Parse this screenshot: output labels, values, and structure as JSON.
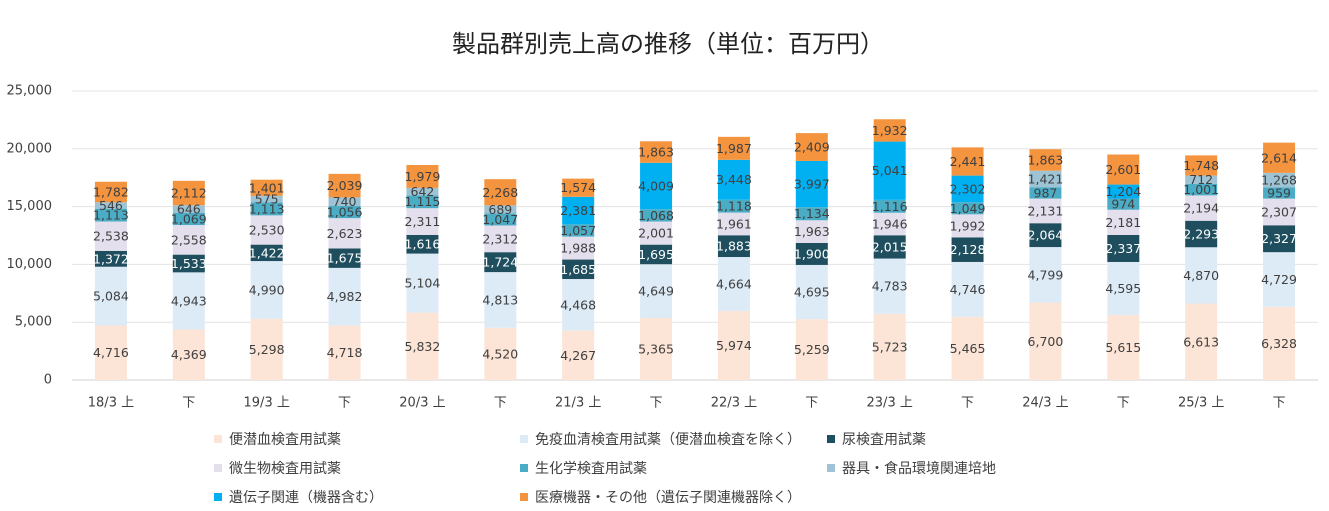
{
  "chart_data": {
    "type": "bar",
    "stacked": true,
    "title": "製品群別売上高の推移（単位：百万円）",
    "xlabel": "",
    "ylabel": "",
    "ylim": [
      0,
      25000
    ],
    "yticks": [
      0,
      5000,
      10000,
      15000,
      20000,
      25000
    ],
    "ytick_labels": [
      "0",
      "5,000",
      "10,000",
      "15,000",
      "20,000",
      "25,000"
    ],
    "grid": true,
    "legend_position": "bottom",
    "categories": [
      "18/3 上",
      "下",
      "19/3 上",
      "下",
      "20/3 上",
      "下",
      "21/3 上",
      "下",
      "22/3 上",
      "下",
      "23/3 上",
      "下",
      "24/3 上",
      "下",
      "25/3 上",
      "下"
    ],
    "series": [
      {
        "name": "便潜血検査用試薬",
        "color": "#FCE4D6",
        "label_color": "#404040",
        "values": [
          4716,
          4369,
          5298,
          4718,
          5832,
          4520,
          4267,
          5365,
          5974,
          5259,
          5723,
          5465,
          6700,
          5615,
          6613,
          6328
        ],
        "labels": [
          "4,716",
          "4,369",
          "5,298",
          "4,718",
          "5,832",
          "4,520",
          "4,267",
          "5,365",
          "5,974",
          "5,259",
          "5,723",
          "5,465",
          "6,700",
          "5,615",
          "6,613",
          "6,328"
        ]
      },
      {
        "name": "免疫血清検査用試薬（便潜血検査を除く）",
        "color": "#DDEBF7",
        "label_color": "#404040",
        "values": [
          5084,
          4943,
          4990,
          4982,
          5104,
          4813,
          4468,
          4649,
          4664,
          4695,
          4783,
          4746,
          4799,
          4595,
          4870,
          4729
        ],
        "labels": [
          "5,084",
          "4,943",
          "4,990",
          "4,982",
          "5,104",
          "4,813",
          "4,468",
          "4,649",
          "4,664",
          "4,695",
          "4,783",
          "4,746",
          "4,799",
          "4,595",
          "4,870",
          "4,729"
        ]
      },
      {
        "name": "尿検査用試薬",
        "color": "#1F4E5F",
        "label_color": "#ffffff",
        "values": [
          1372,
          1533,
          1422,
          1675,
          1616,
          1724,
          1685,
          1695,
          1883,
          1900,
          2015,
          2128,
          2064,
          2337,
          2293,
          2327
        ],
        "labels": [
          "1,372",
          "1,533",
          "1,422",
          "1,675",
          "1,616",
          "1,724",
          "1,685",
          "1,695",
          "1,883",
          "1,900",
          "2,015",
          "2,128",
          "2,064",
          "2,337",
          "2,293",
          "2,327"
        ]
      },
      {
        "name": "微生物検査用試薬",
        "color": "#E4DFEC",
        "label_color": "#404040",
        "values": [
          2538,
          2558,
          2530,
          2623,
          2311,
          2312,
          1988,
          2001,
          1961,
          1963,
          1946,
          1992,
          2131,
          2181,
          2194,
          2307
        ],
        "labels": [
          "2,538",
          "2,558",
          "2,530",
          "2,623",
          "2,311",
          "2,312",
          "1,988",
          "2,001",
          "1,961",
          "1,963",
          "1,946",
          "1,992",
          "2,131",
          "2,181",
          "2,194",
          "2,307"
        ]
      },
      {
        "name": "生化学検査用試薬",
        "color": "#4BACC6",
        "label_color": "#404040",
        "values": [
          1113,
          1069,
          1113,
          1056,
          1115,
          1047,
          1057,
          1068,
          1118,
          1134,
          1116,
          1049,
          987,
          974,
          1001,
          959
        ],
        "labels": [
          "1,113",
          "1,069",
          "1,113",
          "1,056",
          "1,115",
          "1,047",
          "1,057",
          "1,068",
          "1,118",
          "1,134",
          "1,116",
          "1,049",
          "987",
          "974",
          "1,001",
          "959"
        ]
      },
      {
        "name": "器具・食品環境関連培地",
        "color": "#9DC3D4",
        "label_color": "#404040",
        "values": [
          546,
          646,
          575,
          740,
          642,
          689,
          0,
          0,
          0,
          0,
          0,
          0,
          1421,
          0,
          712,
          1268
        ],
        "labels": [
          "546",
          "646",
          "575",
          "740",
          "642",
          "689",
          "",
          "",
          "",
          "",
          "",
          "",
          "1,421",
          "",
          "712",
          "1,268"
        ]
      },
      {
        "name": "遺伝子関連（機器含む）",
        "color": "#00B0F0",
        "label_color": "#404040",
        "values": [
          0,
          0,
          0,
          0,
          0,
          0,
          2381,
          4009,
          3448,
          3997,
          5041,
          2302,
          0,
          1204,
          0,
          0
        ],
        "labels": [
          "",
          "",
          "",
          "",
          "",
          "",
          "2,381",
          "4,009",
          "3,448",
          "3,997",
          "5,041",
          "2,302",
          "",
          "1,204",
          "",
          ""
        ]
      },
      {
        "name": "医療機器・その他（遺伝子関連機器除く）",
        "color": "#F4943E",
        "label_color": "#404040",
        "values": [
          1782,
          2112,
          1401,
          2039,
          1979,
          2268,
          1574,
          1863,
          1987,
          2409,
          1932,
          2441,
          1863,
          2601,
          1748,
          2614
        ],
        "labels": [
          "1,782",
          "2,112",
          "1,401",
          "2,039",
          "1,979",
          "2,268",
          "1,574",
          "1,863",
          "1,987",
          "2,409",
          "1,932",
          "2,441",
          "1,863",
          "2,601",
          "1,748",
          "2,614"
        ]
      }
    ]
  }
}
